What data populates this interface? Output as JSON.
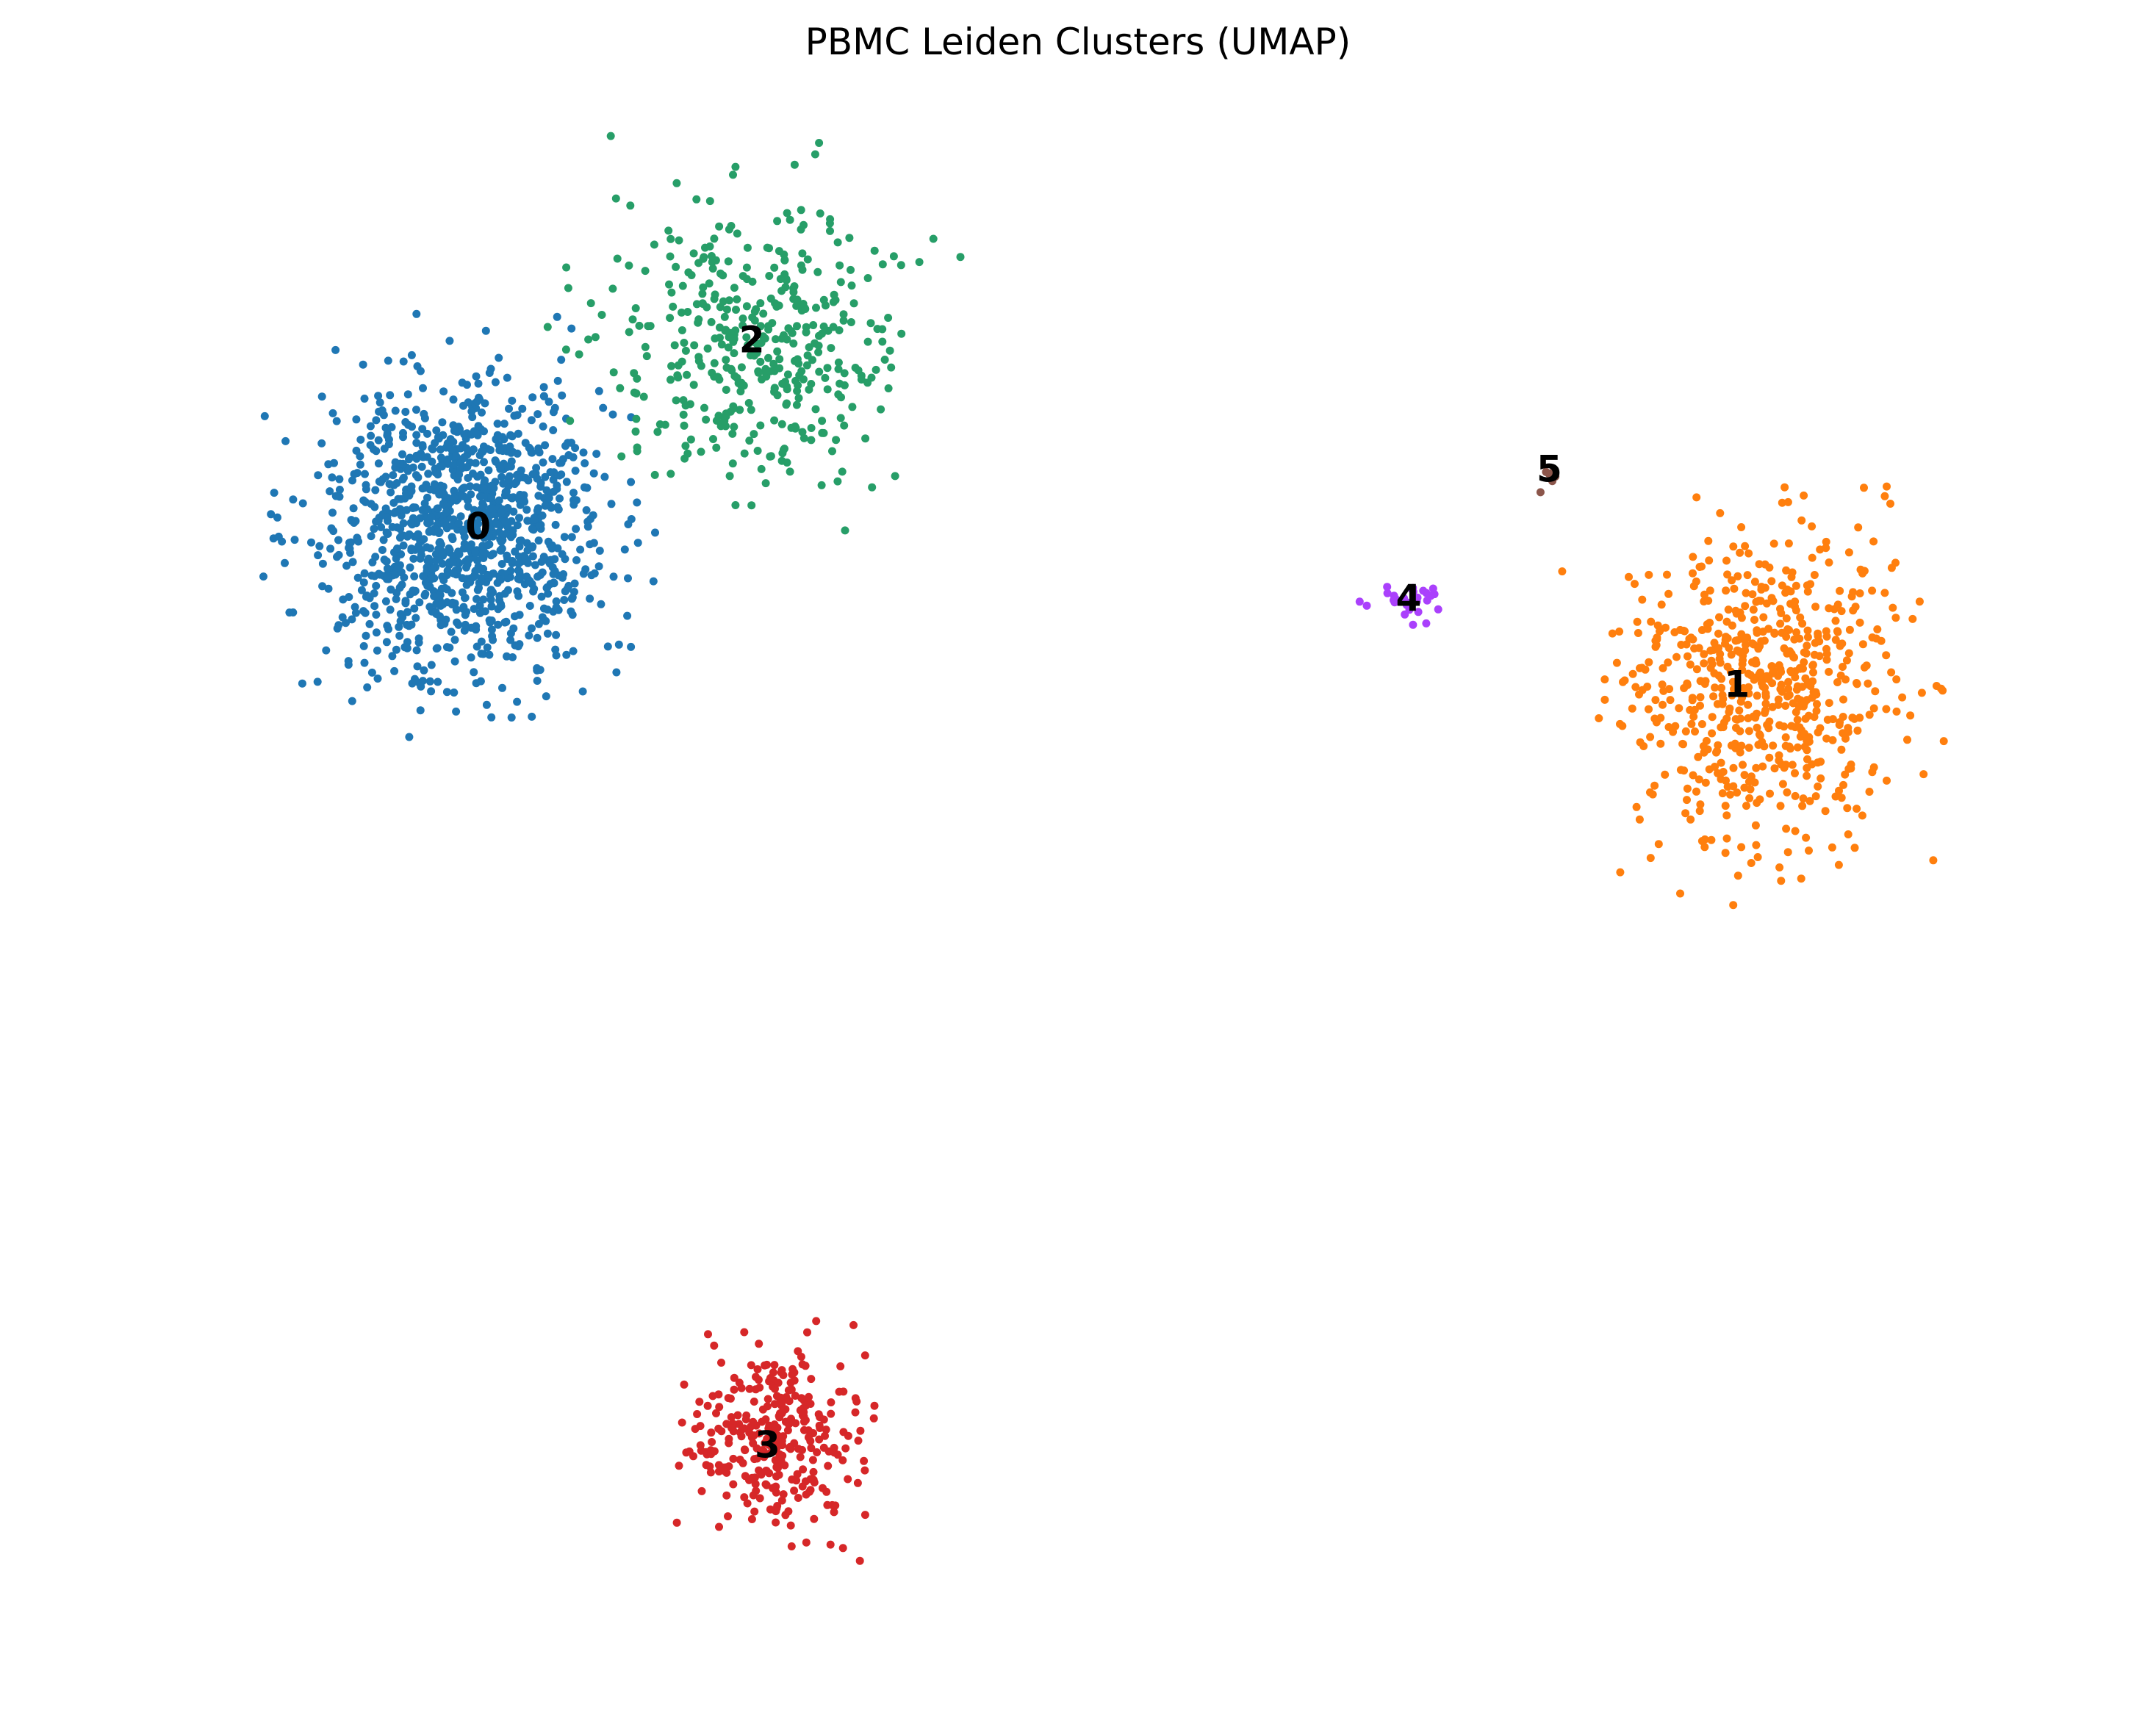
{
  "chart_data": {
    "type": "scatter",
    "title": "PBMC Leiden Clusters (UMAP)",
    "xlabel": "",
    "ylabel": "",
    "axes_visible": false,
    "grid": false,
    "legend": "on-data",
    "clusters": [
      {
        "label": "0",
        "color": "#1f77b4",
        "approx_cells": 1150,
        "center": [
          -3.4,
          5.7
        ],
        "spread": [
          1.6,
          1.9
        ],
        "label_pos": [
          -3.2,
          5.7
        ]
      },
      {
        "label": "1",
        "color": "#ff7f0e",
        "approx_cells": 640,
        "center": [
          13.2,
          3.5
        ],
        "spread": [
          1.6,
          2.0
        ],
        "label_pos": [
          12.9,
          3.5
        ]
      },
      {
        "label": "2",
        "color": "#279e68",
        "approx_cells": 420,
        "center": [
          0.4,
          8.3
        ],
        "spread": [
          1.7,
          1.8
        ],
        "label_pos": [
          0.3,
          8.3
        ]
      },
      {
        "label": "3",
        "color": "#d62728",
        "approx_cells": 310,
        "center": [
          0.6,
          -7.0
        ],
        "spread": [
          1.0,
          1.1
        ],
        "label_pos": [
          0.5,
          -7.1
        ]
      },
      {
        "label": "4",
        "color": "#aa40fc",
        "approx_cells": 30,
        "center": [
          8.6,
          4.7
        ],
        "spread": [
          0.7,
          0.25
        ],
        "label_pos": [
          8.7,
          4.7
        ]
      },
      {
        "label": "5",
        "color": "#8c564b",
        "approx_cells": 6,
        "center": [
          10.5,
          6.5
        ],
        "spread": [
          0.15,
          0.3
        ],
        "label_pos": [
          10.5,
          6.5
        ]
      }
    ],
    "xlim": [
      -8,
      17
    ],
    "ylim": [
      -10,
      11.5
    ]
  }
}
